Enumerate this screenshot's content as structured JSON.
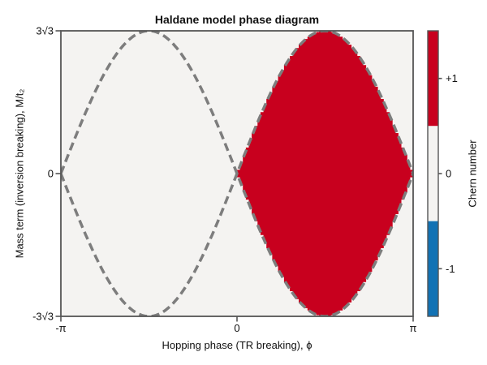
{
  "chart_data": {
    "type": "heatmap",
    "title": "Haldane model phase diagram",
    "xlabel": "Hopping phase (TR breaking), ϕ",
    "ylabel": "Mass term (inversion breaking), M/t₂",
    "xlim": [
      -3.14159265,
      3.14159265
    ],
    "ylim": [
      -5.19615242,
      5.19615242
    ],
    "boundary_amplitude": 5.19615242,
    "grid": false,
    "xticks": [
      {
        "value": -3.14159265,
        "label": "-π"
      },
      {
        "value": 0,
        "label": "0"
      },
      {
        "value": 3.14159265,
        "label": "π"
      }
    ],
    "yticks": [
      {
        "value": 5.19615242,
        "label": "3√3"
      },
      {
        "value": 0,
        "label": "0"
      },
      {
        "value": -5.19615242,
        "label": "-3√3"
      }
    ],
    "boundary_curves": [
      {
        "name": "upper",
        "expression": "M/t2 = +3√3·sin(ϕ)",
        "line_style": "dashed",
        "color": "#7d7d7d"
      },
      {
        "name": "lower",
        "expression": "M/t2 = -3√3·sin(ϕ)",
        "line_style": "dashed",
        "color": "#7d7d7d"
      }
    ],
    "regions": [
      {
        "chern": 1,
        "label": "+1",
        "color": "#c8001e",
        "extent": "0 < ϕ < π and |M/t2| < 3√3·sin(ϕ)"
      },
      {
        "chern": 0,
        "label": "0",
        "color": "#f4f3f1",
        "extent": "everywhere else in plot"
      }
    ],
    "colorbar": {
      "label": "Chern number",
      "position": "right",
      "ticks": [
        {
          "value": 1,
          "label": "+1",
          "color": "#c8001e"
        },
        {
          "value": 0,
          "label": "0",
          "color": "#f4f3f1"
        },
        {
          "value": -1,
          "label": "-1",
          "color": "#1272b4"
        }
      ]
    }
  }
}
